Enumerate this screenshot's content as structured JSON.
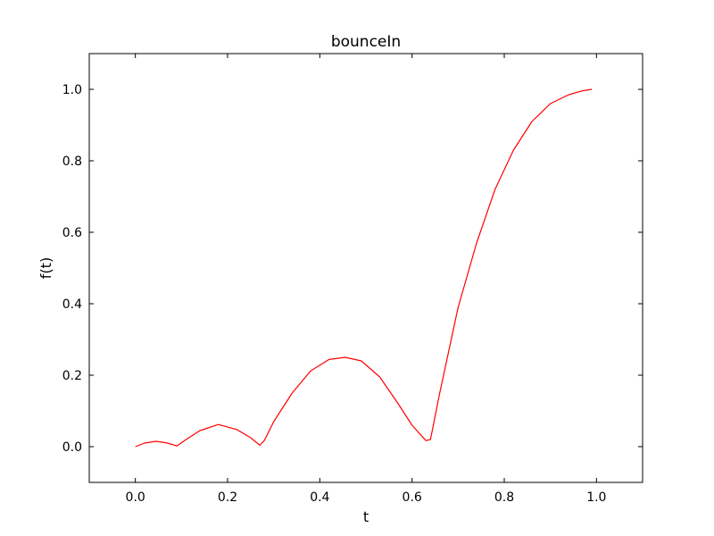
{
  "chart_data": {
    "type": "line",
    "title": "bounceIn",
    "xlabel": "t",
    "ylabel": "f(t)",
    "xlim": [
      -0.1,
      1.1
    ],
    "ylim": [
      -0.1,
      1.1
    ],
    "xticks": [
      0.0,
      0.2,
      0.4,
      0.6,
      0.8,
      1.0
    ],
    "yticks": [
      0.0,
      0.2,
      0.4,
      0.6,
      0.8,
      1.0
    ],
    "xtick_labels": [
      "0.0",
      "0.2",
      "0.4",
      "0.6",
      "0.8",
      "1.0"
    ],
    "ytick_labels": [
      "0.0",
      "0.2",
      "0.4",
      "0.6",
      "0.8",
      "1.0"
    ],
    "grid": false,
    "legend": "none",
    "series": [
      {
        "color": "#ff0000",
        "x": [
          0.0,
          0.02,
          0.045,
          0.07,
          0.09,
          0.11,
          0.14,
          0.18,
          0.22,
          0.25,
          0.27,
          0.28,
          0.3,
          0.34,
          0.38,
          0.42,
          0.455,
          0.49,
          0.53,
          0.57,
          0.6,
          0.63,
          0.64,
          0.66,
          0.7,
          0.74,
          0.78,
          0.82,
          0.86,
          0.9,
          0.94,
          0.97,
          0.99
        ],
        "y": [
          0.0,
          0.01,
          0.015,
          0.01,
          0.002,
          0.02,
          0.045,
          0.062,
          0.048,
          0.025,
          0.004,
          0.018,
          0.07,
          0.15,
          0.212,
          0.244,
          0.25,
          0.24,
          0.195,
          0.12,
          0.06,
          0.017,
          0.02,
          0.15,
          0.39,
          0.57,
          0.72,
          0.83,
          0.91,
          0.96,
          0.985,
          0.996,
          1.0
        ]
      }
    ]
  }
}
